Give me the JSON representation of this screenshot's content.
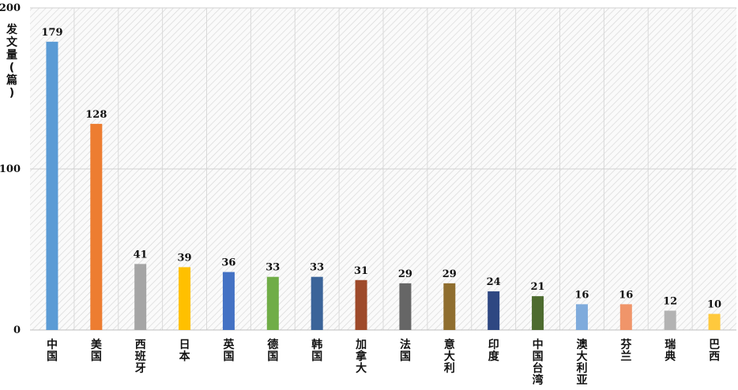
{
  "chart_data": {
    "type": "bar",
    "ylabel": "发文量(篇)",
    "categories": [
      "中国",
      "美国",
      "西班牙",
      "日本",
      "英国",
      "德国",
      "韩国",
      "加拿大",
      "法国",
      "意大利",
      "印度",
      "中国台湾",
      "澳大利亚",
      "芬兰",
      "瑞典",
      "巴西"
    ],
    "values": [
      179,
      128,
      41,
      39,
      36,
      33,
      33,
      31,
      29,
      29,
      24,
      21,
      16,
      16,
      12,
      10
    ],
    "colors": [
      "#5b9bd5",
      "#ed7d31",
      "#a5a5a5",
      "#ffc000",
      "#4472c4",
      "#70ad47",
      "#3b6499",
      "#9e4a2a",
      "#666666",
      "#8f6e2f",
      "#2e4782",
      "#4d6b2f",
      "#7fabdc",
      "#f0956a",
      "#b3b3b3",
      "#ffc93d"
    ],
    "ylim": [
      0,
      200
    ],
    "yticks": [
      0,
      100,
      200
    ],
    "grid": true
  }
}
